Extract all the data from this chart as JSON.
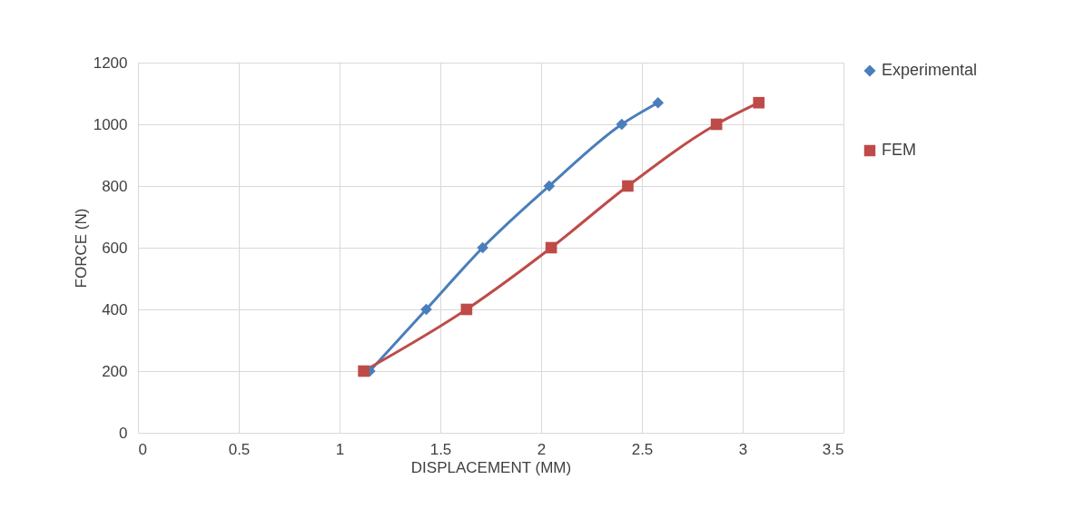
{
  "chart_data": {
    "type": "line",
    "xlabel": "DISPLACEMENT (MM)",
    "ylabel": "FORCE (N)",
    "xlim": [
      0,
      3.5
    ],
    "xticks": [
      0,
      0.5,
      1,
      1.5,
      2,
      2.5,
      3,
      3.5
    ],
    "ylim": [
      0,
      1200
    ],
    "yticks": [
      0,
      200,
      400,
      600,
      800,
      1000,
      1200
    ],
    "grid": true,
    "legend": "right",
    "line_style": "solid",
    "series": [
      {
        "name": "Experimental",
        "color": "#4a7ebb",
        "marker": "diamond",
        "x": [
          1.15,
          1.43,
          1.71,
          2.04,
          2.4,
          2.58
        ],
        "values": [
          200,
          400,
          600,
          800,
          1000,
          1070
        ]
      },
      {
        "name": "FEM",
        "color": "#be4b48",
        "marker": "square",
        "x": [
          1.12,
          1.63,
          2.05,
          2.43,
          2.87,
          3.08
        ],
        "values": [
          200,
          400,
          600,
          800,
          1000,
          1070
        ]
      }
    ]
  }
}
